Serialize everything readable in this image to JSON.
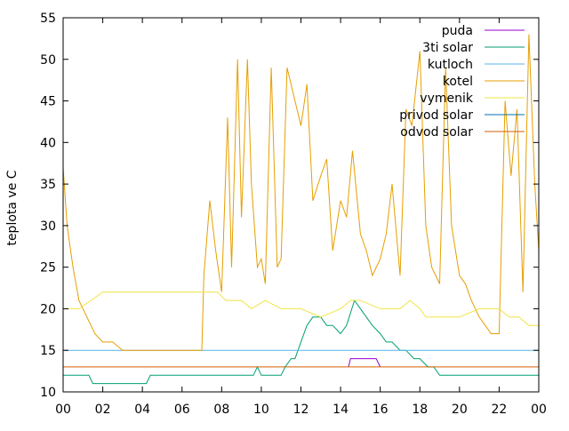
{
  "chart_data": {
    "type": "line",
    "ylabel": "teplota ve C",
    "xlabel": "",
    "title": "",
    "xlim": [
      0,
      24
    ],
    "ylim": [
      10,
      55
    ],
    "x_tick_labels": [
      "00",
      "02",
      "04",
      "06",
      "08",
      "10",
      "12",
      "14",
      "16",
      "18",
      "20",
      "22",
      "00"
    ],
    "y_tick_labels": [
      "10",
      "15",
      "20",
      "25",
      "30",
      "35",
      "40",
      "45",
      "50",
      "55"
    ],
    "grid": false,
    "legend_position": "top-right",
    "series": [
      {
        "name": "puda",
        "color": "#9400D3",
        "x": [
          14.4,
          14.5,
          15.8,
          16.0
        ],
        "y": [
          13,
          14,
          14,
          13
        ]
      },
      {
        "name": "3ti solar",
        "color": "#009E73",
        "x": [
          0,
          1.3,
          1.5,
          4.2,
          4.4,
          9.6,
          9.8,
          10.0,
          11.0,
          11.2,
          11.5,
          11.7,
          12.0,
          12.3,
          12.6,
          13.0,
          13.3,
          13.6,
          14.0,
          14.3,
          14.7,
          15.0,
          15.3,
          15.6,
          16.0,
          16.3,
          16.6,
          17.0,
          17.3,
          17.7,
          18.0,
          18.4,
          18.7,
          19.0,
          19.3,
          21.0,
          22.5,
          23.0,
          24.0
        ],
        "y": [
          12,
          12,
          11,
          11,
          12,
          12,
          13,
          12,
          12,
          13,
          14,
          14,
          16,
          18,
          19,
          19,
          18,
          18,
          17,
          18,
          21,
          20,
          19,
          18,
          17,
          16,
          16,
          15,
          15,
          14,
          14,
          13,
          13,
          12,
          12,
          12,
          12,
          12,
          12
        ]
      },
      {
        "name": "kutloch",
        "color": "#56B4E9",
        "x": [
          0,
          24
        ],
        "y": [
          15,
          15
        ]
      },
      {
        "name": "kotel",
        "color": "#E69F00",
        "x": [
          0,
          0.2,
          0.5,
          0.8,
          1.2,
          1.6,
          2.0,
          2.5,
          3.0,
          4.0,
          5.0,
          6.0,
          7.0,
          7.1,
          7.4,
          7.7,
          8.0,
          8.3,
          8.5,
          8.8,
          9.0,
          9.3,
          9.5,
          9.8,
          10.0,
          10.2,
          10.5,
          10.8,
          11.0,
          11.3,
          11.6,
          12.0,
          12.3,
          12.6,
          13.0,
          13.3,
          13.6,
          14.0,
          14.3,
          14.6,
          15.0,
          15.3,
          15.6,
          16.0,
          16.3,
          16.6,
          17.0,
          17.3,
          17.6,
          18.0,
          18.3,
          18.6,
          19.0,
          19.3,
          19.6,
          20.0,
          20.3,
          20.6,
          21.0,
          21.3,
          21.6,
          22.0,
          22.3,
          22.6,
          22.9,
          23.2,
          23.5,
          23.8,
          24.0
        ],
        "y": [
          37,
          30,
          25,
          21,
          19,
          17,
          16,
          16,
          15,
          15,
          15,
          15,
          15,
          24,
          33,
          27,
          22,
          43,
          25,
          50,
          31,
          50,
          35,
          25,
          26,
          23,
          49,
          25,
          26,
          49,
          46,
          42,
          47,
          33,
          36,
          38,
          27,
          33,
          31,
          39,
          29,
          27,
          24,
          26,
          29,
          35,
          24,
          44,
          42,
          51,
          30,
          25,
          23,
          49,
          30,
          24,
          23,
          21,
          19,
          18,
          17,
          17,
          45,
          36,
          44,
          22,
          53,
          35,
          27
        ]
      },
      {
        "name": "vymenik",
        "color": "#F0E442",
        "x": [
          0,
          0.8,
          1.4,
          2.0,
          5.0,
          7.0,
          7.8,
          8.2,
          9.0,
          9.5,
          10.2,
          11.0,
          12.0,
          13.0,
          14.0,
          14.5,
          15.0,
          16.0,
          17.0,
          17.5,
          18.0,
          18.3,
          19.0,
          20.0,
          21.0,
          22.0,
          22.5,
          23.0,
          23.5,
          24.0
        ],
        "y": [
          20,
          20,
          21,
          22,
          22,
          22,
          22,
          21,
          21,
          20,
          21,
          20,
          20,
          19,
          20,
          21,
          21,
          20,
          20,
          21,
          20,
          19,
          19,
          19,
          20,
          20,
          19,
          19,
          18,
          18
        ]
      },
      {
        "name": "privod solar",
        "color": "#0072B2",
        "x": [
          0,
          24
        ],
        "y": [
          null,
          null
        ]
      },
      {
        "name": "odvod solar",
        "color": "#D55E00",
        "x": [
          0,
          24
        ],
        "y": [
          13,
          13
        ]
      }
    ]
  }
}
